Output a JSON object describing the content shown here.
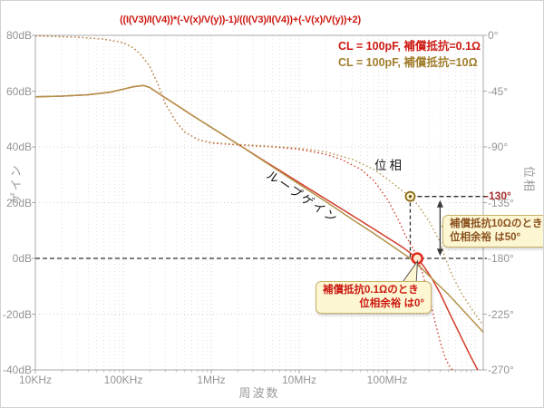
{
  "title": "((I(V3)/I(V4))*(-V(x)/V(y))-1)/((I(V3)/I(V4))+(-V(x)/V(y))+2)",
  "legend": {
    "items": [
      {
        "label": "CL = 100pF, 補償抵抗=0.1Ω",
        "color": "#CC1A12"
      },
      {
        "label": "CL = 100pF, 補償抵抗=10Ω",
        "color": "#A07E2C"
      }
    ]
  },
  "axes": {
    "x": {
      "label": "周波数",
      "scale": "log",
      "ticks": [
        {
          "f": 10000.0,
          "label": "10KHz"
        },
        {
          "f": 100000.0,
          "label": "100KHz"
        },
        {
          "f": 1000000.0,
          "label": "1MHz"
        },
        {
          "f": 10000000.0,
          "label": "10MHz"
        },
        {
          "f": 100000000.0,
          "label": "100MHz"
        }
      ]
    },
    "y_left": {
      "label": "ゲイン",
      "unit": "dB",
      "range": [
        -40,
        80
      ],
      "ticks": [
        {
          "v": 80,
          "label": "80dB"
        },
        {
          "v": 60,
          "label": "60dB"
        },
        {
          "v": 40,
          "label": "40dB"
        },
        {
          "v": 20,
          "label": "20dB"
        },
        {
          "v": 0,
          "label": "0dB"
        },
        {
          "v": -20,
          "label": "-20dB"
        },
        {
          "v": -40,
          "label": "-40dB"
        }
      ]
    },
    "y_right": {
      "label": "位相",
      "unit": "deg",
      "range": [
        -270,
        0
      ],
      "ticks": [
        {
          "v": 0,
          "label": "0°"
        },
        {
          "v": -45,
          "label": "-45°"
        },
        {
          "v": -90,
          "label": "-90°"
        },
        {
          "v": -135,
          "label": "-135°"
        },
        {
          "v": -180,
          "label": "-180°"
        },
        {
          "v": -225,
          "label": "-225°"
        },
        {
          "v": -270,
          "label": "-270°"
        }
      ]
    }
  },
  "curve_labels": {
    "loop_gain": "ループゲイン",
    "phase": "位相"
  },
  "annotations": {
    "phase_at_10ohm_cross": "-130°",
    "callout_10ohm": {
      "line1": "補償抵抗10Ωのとき",
      "line2": "位相余裕 は50°",
      "text_color": "#8B521F"
    },
    "callout_01ohm": {
      "line1": "補償抵抗0.1Ωのとき",
      "line2": "位相余裕 は0°",
      "text_color": "#CC1A12"
    },
    "box_fill": "#FCF6D3",
    "box_border": "#C9B167"
  },
  "chart_data": {
    "type": "line",
    "x_scale": "log",
    "x_range_hz": [
      10000.0,
      1240000000.0
    ],
    "y_left_range_db": [
      -40,
      80
    ],
    "y_right_range_deg": [
      -270,
      0
    ],
    "grid": true,
    "legend_position": "top-right",
    "series": [
      {
        "name": "ループゲイン CL=100pF 補償抵抗=0.1Ω",
        "axis": "left",
        "style": "solid",
        "color": "#D23B29",
        "points": [
          [
            10000.0,
            58
          ],
          [
            20000.0,
            58.2
          ],
          [
            40000.0,
            58.7
          ],
          [
            70000.0,
            59.6
          ],
          [
            100000.0,
            60.7
          ],
          [
            130000.0,
            61.6
          ],
          [
            170000.0,
            62
          ],
          [
            200000.0,
            61.3
          ],
          [
            250000.0,
            59.3
          ],
          [
            300000.0,
            57.6
          ],
          [
            400000.0,
            55.1
          ],
          [
            600000.0,
            51.4
          ],
          [
            1000000.0,
            47
          ],
          [
            2000000.0,
            41
          ],
          [
            4000000.0,
            35
          ],
          [
            10000000.0,
            27.2
          ],
          [
            20000000.0,
            21.3
          ],
          [
            40000000.0,
            15.4
          ],
          [
            70000000.0,
            10.6
          ],
          [
            100000000.0,
            7.5
          ],
          [
            150000000.0,
            4
          ],
          [
            220000000.0,
            0
          ],
          [
            260000000.0,
            -2.8
          ],
          [
            320000000.0,
            -7
          ],
          [
            400000000.0,
            -12.5
          ],
          [
            500000000.0,
            -19
          ],
          [
            700000000.0,
            -28.5
          ],
          [
            900000000.0,
            -35.5
          ],
          [
            1070000000.0,
            -40
          ]
        ]
      },
      {
        "name": "ループゲイン CL=100pF 補償抵抗=10Ω",
        "axis": "left",
        "style": "solid",
        "color": "#B3924A",
        "points": [
          [
            10000.0,
            58
          ],
          [
            20000.0,
            58.2
          ],
          [
            40000.0,
            58.7
          ],
          [
            70000.0,
            59.6
          ],
          [
            100000.0,
            60.7
          ],
          [
            130000.0,
            61.6
          ],
          [
            170000.0,
            62
          ],
          [
            200000.0,
            61.3
          ],
          [
            250000.0,
            59.3
          ],
          [
            300000.0,
            57.6
          ],
          [
            400000.0,
            55.1
          ],
          [
            600000.0,
            51.4
          ],
          [
            1000000.0,
            47
          ],
          [
            2000000.0,
            41
          ],
          [
            4000000.0,
            34.8
          ],
          [
            10000000.0,
            26.6
          ],
          [
            20000000.0,
            20.4
          ],
          [
            40000000.0,
            14
          ],
          [
            70000000.0,
            9
          ],
          [
            100000000.0,
            5.7
          ],
          [
            140000000.0,
            2.5
          ],
          [
            183000000.0,
            0
          ],
          [
            250000000.0,
            -3.8
          ],
          [
            350000000.0,
            -8.3
          ],
          [
            500000000.0,
            -13
          ],
          [
            700000000.0,
            -18
          ],
          [
            1000000000.0,
            -23.3
          ],
          [
            1240000000.0,
            -26.5
          ]
        ]
      },
      {
        "name": "位相 CL=100pF 補償抵抗=0.1Ω",
        "axis": "right",
        "style": "dotted",
        "color": "#D23B29",
        "points": [
          [
            10000.0,
            -0.5
          ],
          [
            30000.0,
            -1.5
          ],
          [
            60000.0,
            -3
          ],
          [
            100000.0,
            -6
          ],
          [
            130000.0,
            -10
          ],
          [
            160000.0,
            -16
          ],
          [
            200000.0,
            -25
          ],
          [
            250000.0,
            -40
          ],
          [
            300000.0,
            -55
          ],
          [
            400000.0,
            -70
          ],
          [
            500000.0,
            -78
          ],
          [
            700000.0,
            -84
          ],
          [
            1000000.0,
            -87
          ],
          [
            2000000.0,
            -88.5
          ],
          [
            5000000.0,
            -90
          ],
          [
            10000000.0,
            -92
          ],
          [
            20000000.0,
            -96
          ],
          [
            30000000.0,
            -100
          ],
          [
            50000000.0,
            -108
          ],
          [
            70000000.0,
            -117
          ],
          [
            100000000.0,
            -132
          ],
          [
            130000000.0,
            -147
          ],
          [
            160000000.0,
            -161
          ],
          [
            200000000.0,
            -173
          ],
          [
            220000000.0,
            -180
          ],
          [
            250000000.0,
            -191
          ],
          [
            300000000.0,
            -212
          ],
          [
            350000000.0,
            -231
          ],
          [
            400000000.0,
            -247
          ],
          [
            450000000.0,
            -259
          ],
          [
            500000000.0,
            -266
          ],
          [
            550000000.0,
            -270
          ]
        ]
      },
      {
        "name": "位相 CL=100pF 補償抵抗=10Ω",
        "axis": "right",
        "style": "dotted",
        "color": "#B3924A",
        "points": [
          [
            10000.0,
            -0.5
          ],
          [
            30000.0,
            -1.5
          ],
          [
            60000.0,
            -3
          ],
          [
            100000.0,
            -6
          ],
          [
            130000.0,
            -10
          ],
          [
            160000.0,
            -16
          ],
          [
            200000.0,
            -25
          ],
          [
            250000.0,
            -40
          ],
          [
            300000.0,
            -55
          ],
          [
            400000.0,
            -70
          ],
          [
            500000.0,
            -78
          ],
          [
            700000.0,
            -84
          ],
          [
            1000000.0,
            -86.5
          ],
          [
            2000000.0,
            -88
          ],
          [
            5000000.0,
            -89.5
          ],
          [
            10000000.0,
            -91
          ],
          [
            20000000.0,
            -94
          ],
          [
            40000000.0,
            -100
          ],
          [
            70000000.0,
            -108
          ],
          [
            100000000.0,
            -116
          ],
          [
            140000000.0,
            -124
          ],
          [
            183000000.0,
            -130
          ],
          [
            230000000.0,
            -138
          ],
          [
            300000000.0,
            -150
          ],
          [
            400000000.0,
            -167
          ],
          [
            460000000.0,
            -180
          ],
          [
            550000000.0,
            -194
          ],
          [
            700000000.0,
            -208
          ],
          [
            900000000.0,
            -220
          ],
          [
            1100000000.0,
            -229
          ],
          [
            1240000000.0,
            -234
          ]
        ]
      }
    ],
    "markers": [
      {
        "f": 183000000.0,
        "value": -130,
        "axis": "right",
        "style": "target",
        "color": "#8B6914"
      },
      {
        "f": 220000000.0,
        "value": 0,
        "axis": "left",
        "style": "ring",
        "color": "#E02B20"
      }
    ],
    "guides": [
      {
        "type": "h",
        "axis": "left",
        "value": 0,
        "f1": 10000.0,
        "f2": 1360000000.0
      },
      {
        "type": "h",
        "axis": "right",
        "value": -130,
        "f1": 183000000.0,
        "f2": 1360000000.0
      },
      {
        "type": "v",
        "axis": "right",
        "f": 183000000.0,
        "v1": -130,
        "v2": -180
      }
    ],
    "arrow": {
      "f": 400000000.0,
      "from_deg": -133,
      "to_deg": -178
    }
  }
}
